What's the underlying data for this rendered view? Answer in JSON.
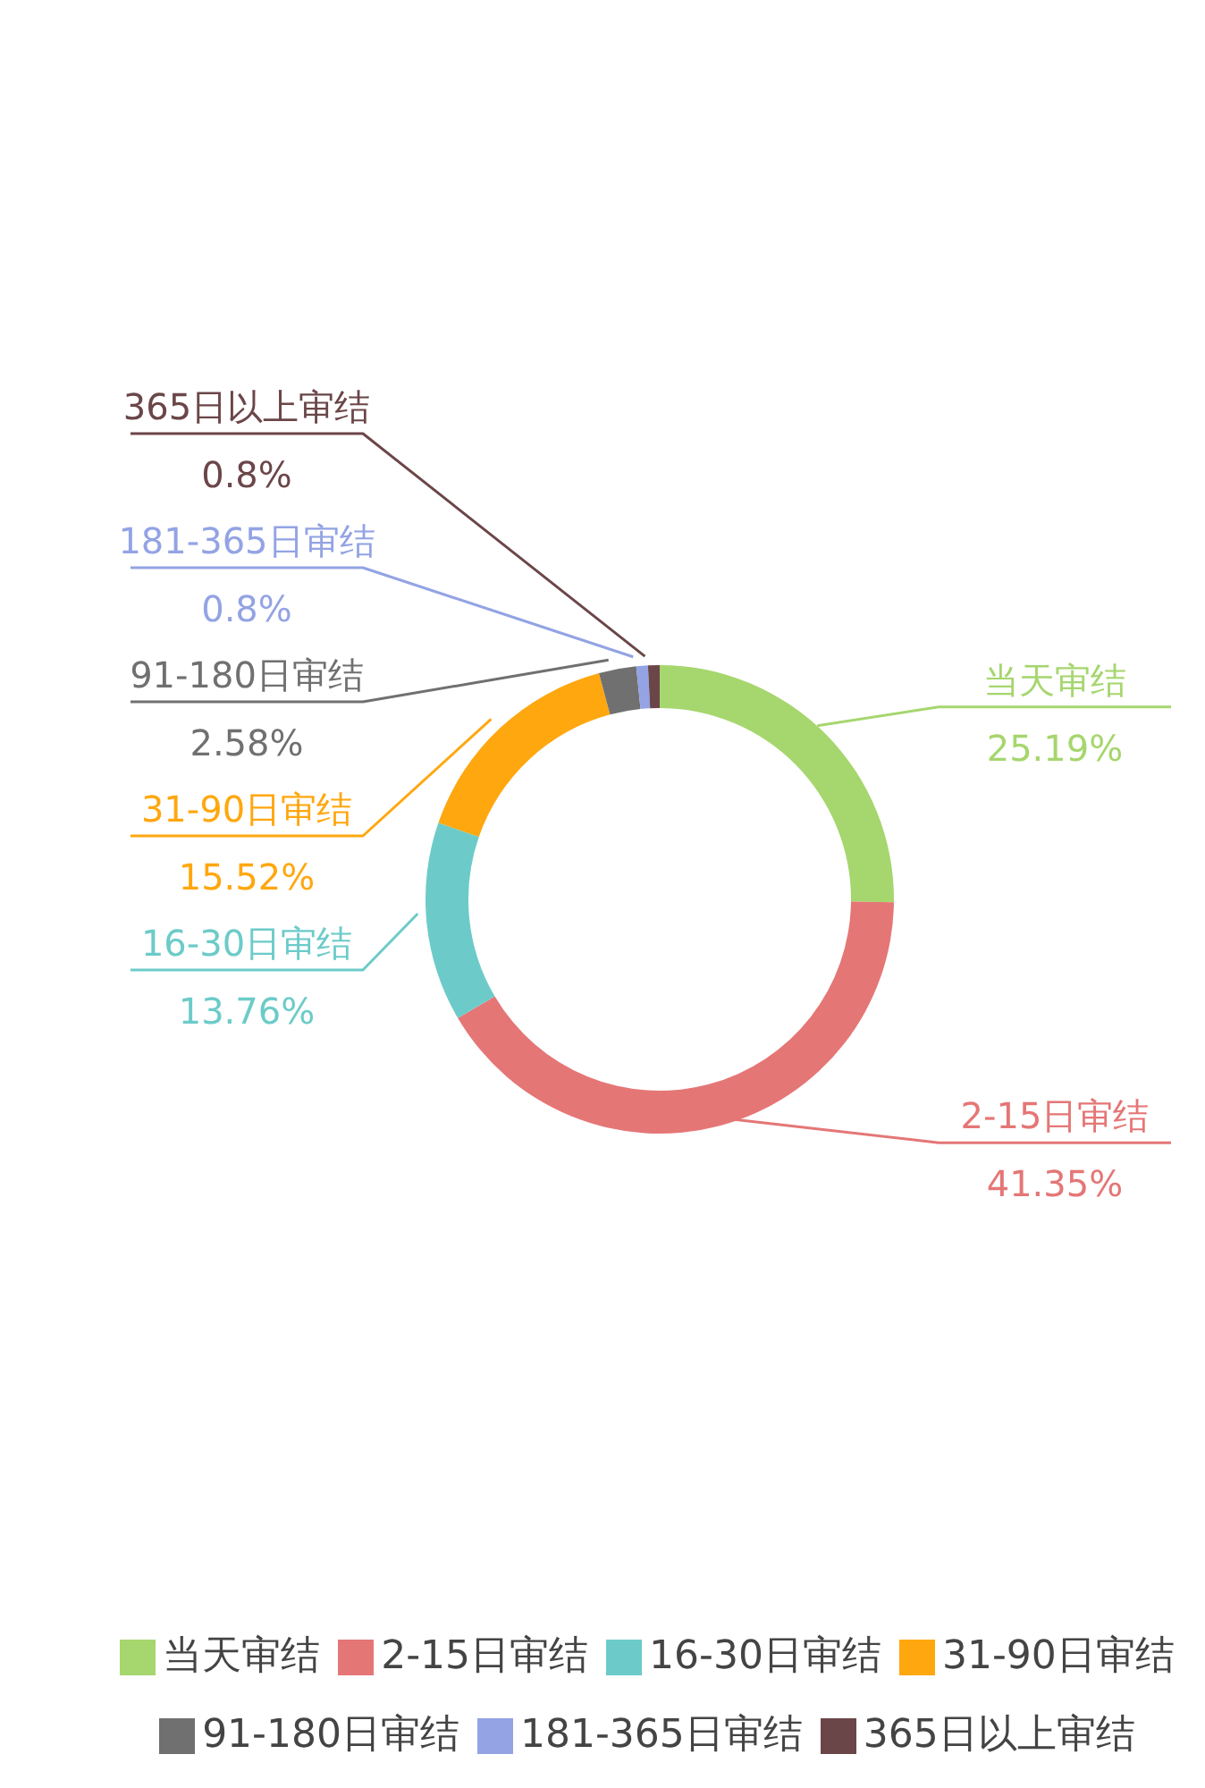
{
  "chart_data": {
    "type": "donut",
    "categories": [
      "当天审结",
      "2-15日审结",
      "16-30日审结",
      "31-90日审结",
      "91-180日审结",
      "181-365日审结",
      "365日以上审结"
    ],
    "values": [
      25.19,
      41.35,
      13.76,
      15.52,
      2.58,
      0.8,
      0.8
    ],
    "colors": [
      "#a6d66e",
      "#e57676",
      "#6ccbc9",
      "#ffa70f",
      "#707070",
      "#93a3e4",
      "#6b4649"
    ],
    "value_labels": [
      "25.19%",
      "41.35%",
      "13.76%",
      "15.52%",
      "2.58%",
      "0.8%",
      "0.8%"
    ],
    "legend": "bottom"
  }
}
